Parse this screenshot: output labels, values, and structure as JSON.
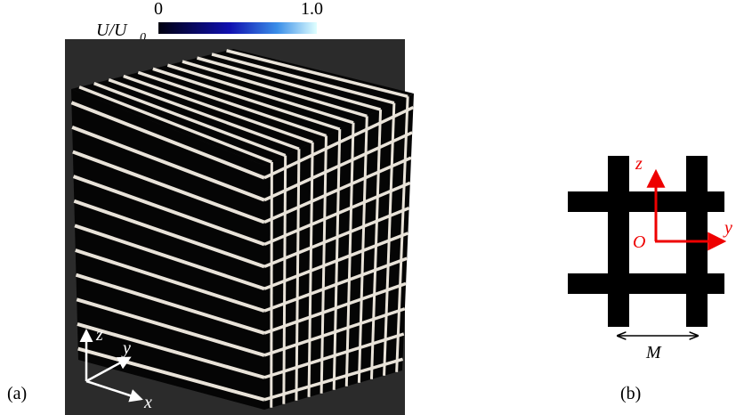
{
  "colorbar": {
    "label": "U/U",
    "label_subscript": "0",
    "tick_labels": [
      "0",
      "1.0"
    ]
  },
  "panel_a": {
    "label": "(a)",
    "axes": [
      "z",
      "y",
      "x"
    ]
  },
  "panel_b": {
    "label": "(b)",
    "axes": [
      "z",
      "y"
    ],
    "origin": "O",
    "spacing": "M"
  }
}
